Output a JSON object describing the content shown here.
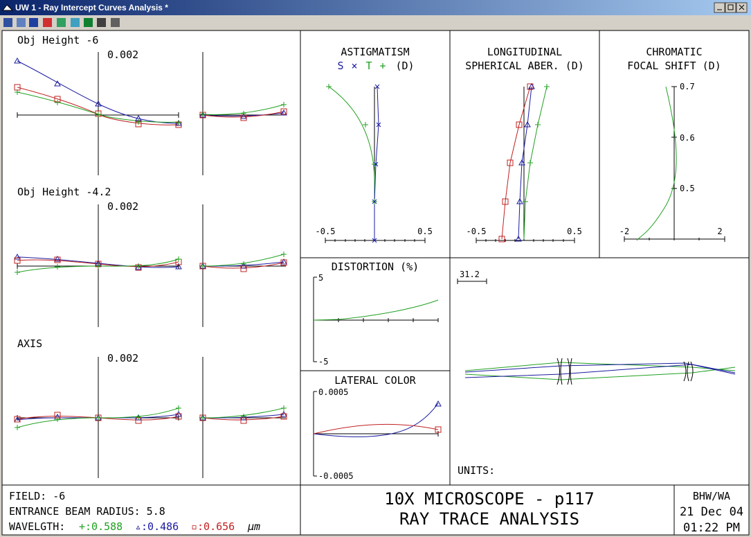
{
  "window": {
    "title": "UW 1 - Ray Intercept Curves Analysis *"
  },
  "ray_intercept": {
    "panels": [
      {
        "label": "Obj Height -6",
        "scale": "0.002"
      },
      {
        "label": "Obj Height -4.2",
        "scale": "0.002"
      },
      {
        "label": "AXIS",
        "scale": "0.002"
      }
    ]
  },
  "astigmatism": {
    "title": "ASTIGMATISM",
    "legend": [
      "S",
      "×",
      "T",
      "+",
      "(D)"
    ],
    "xticks": [
      "-0.5",
      "0.5"
    ]
  },
  "longitudinal": {
    "title": [
      "LONGITUDINAL",
      "SPHERICAL ABER. (D)"
    ],
    "xticks": [
      "-0.5",
      "0.5"
    ]
  },
  "chromatic": {
    "title": [
      "CHROMATIC",
      "FOCAL SHIFT (D)"
    ],
    "xticks": [
      "-2",
      "2"
    ],
    "yticks": [
      "0.7",
      "0.6",
      "0.5"
    ]
  },
  "distortion": {
    "title": "DISTORTION (%)",
    "yticks": [
      "5",
      "-5"
    ]
  },
  "lateral_color": {
    "title": "LATERAL COLOR",
    "yticks": [
      "0.0005",
      "-0.0005"
    ]
  },
  "layout": {
    "scale": "31.2",
    "units": "UNITS:"
  },
  "footer": {
    "field": "FIELD: -6",
    "beam": "ENTRANCE BEAM RADIUS: 5.8",
    "wavelength_label": "WAVELGTH:",
    "wavelengths": [
      "+:0.588",
      "▵:0.486",
      "▫:0.656"
    ],
    "unit": "µm",
    "title": [
      "10X MICROSCOPE - p117",
      "RAY TRACE ANALYSIS"
    ],
    "info": [
      "BHW/WA",
      "21 Dec 04",
      "01:22 PM"
    ]
  }
}
